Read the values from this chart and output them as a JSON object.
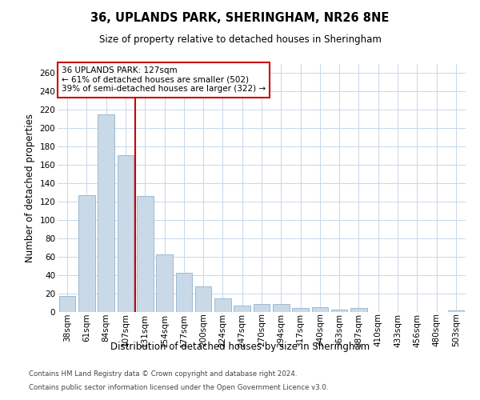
{
  "title1": "36, UPLANDS PARK, SHERINGHAM, NR26 8NE",
  "title2": "Size of property relative to detached houses in Sheringham",
  "xlabel": "Distribution of detached houses by size in Sheringham",
  "ylabel": "Number of detached properties",
  "categories": [
    "38sqm",
    "61sqm",
    "84sqm",
    "107sqm",
    "131sqm",
    "154sqm",
    "177sqm",
    "200sqm",
    "224sqm",
    "247sqm",
    "270sqm",
    "294sqm",
    "317sqm",
    "340sqm",
    "363sqm",
    "387sqm",
    "410sqm",
    "433sqm",
    "456sqm",
    "480sqm",
    "503sqm"
  ],
  "values": [
    17,
    127,
    215,
    171,
    126,
    63,
    43,
    28,
    15,
    7,
    9,
    9,
    4,
    5,
    3,
    4,
    0,
    0,
    0,
    0,
    2
  ],
  "bar_color": "#c9d9e8",
  "bar_edge_color": "#9bbad0",
  "grid_color": "#c8d8e8",
  "annotation_text_line1": "36 UPLANDS PARK: 127sqm",
  "annotation_text_line2": "← 61% of detached houses are smaller (502)",
  "annotation_text_line3": "39% of semi-detached houses are larger (322) →",
  "annotation_box_color": "#ffffff",
  "annotation_border_color": "#cc0000",
  "vline_color": "#cc0000",
  "vline_x_index": 4,
  "footnote1": "Contains HM Land Registry data © Crown copyright and database right 2024.",
  "footnote2": "Contains public sector information licensed under the Open Government Licence v3.0.",
  "ylim": [
    0,
    270
  ],
  "yticks": [
    0,
    20,
    40,
    60,
    80,
    100,
    120,
    140,
    160,
    180,
    200,
    220,
    240,
    260
  ]
}
